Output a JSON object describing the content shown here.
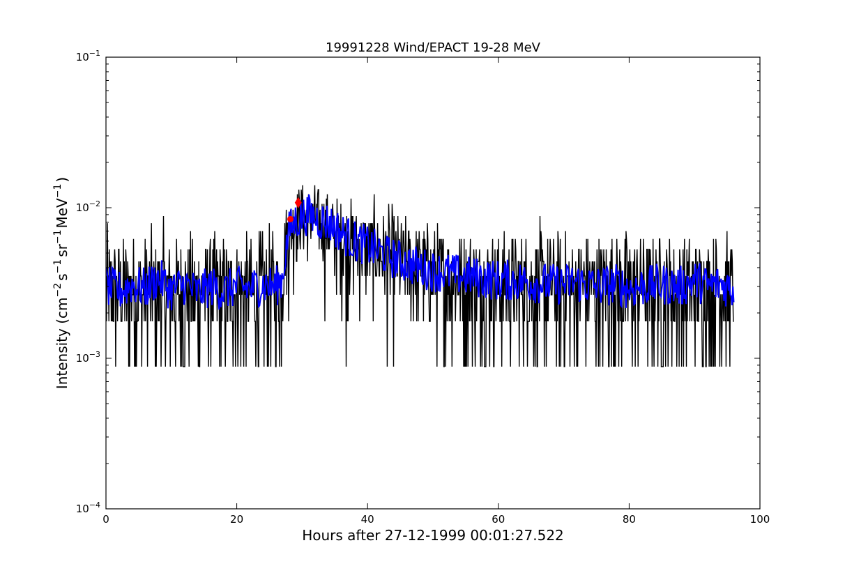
{
  "chart_data": {
    "type": "line",
    "title": "19991228 Wind/EPACT 19-28 MeV",
    "xlabel": "Hours after 27-12-1999 00:01:27.522",
    "ylabel": {
      "prefix": "Intensity (cm",
      "exp1": "−2",
      "s": "s",
      "exp2": "−1",
      "sr": "sr",
      "exp3": "−1",
      "mev": "MeV",
      "exp4": "−1",
      "suffix": ")"
    },
    "xlim": [
      0,
      100
    ],
    "ylim": [
      0.0001,
      0.1
    ],
    "yscale": "log",
    "x_ticks": [
      "0",
      "20",
      "40",
      "60",
      "80",
      "100"
    ],
    "y_ticks": [
      {
        "base": "10",
        "exp": "−4",
        "value": 0.0001
      },
      {
        "base": "10",
        "exp": "−3",
        "value": 0.001
      },
      {
        "base": "10",
        "exp": "−2",
        "value": 0.01
      },
      {
        "base": "10",
        "exp": "−1",
        "value": 0.1
      }
    ],
    "grid": false,
    "legend": "none",
    "series": [
      {
        "role": "raw",
        "color": "#000000",
        "x_range": [
          0,
          96
        ],
        "levels": [
          0.00088,
          0.00176,
          0.00264,
          0.00352,
          0.0044,
          0.0053,
          0.0062,
          0.007,
          0.0079,
          0.0088,
          0.0097,
          0.0106,
          0.0115,
          0.0123,
          0.0132,
          0.0141,
          0.015,
          0.0165
        ],
        "profile": [
          {
            "x": 0,
            "mean": 0.003
          },
          {
            "x": 26.8,
            "mean": 0.003
          },
          {
            "x": 27.5,
            "mean": 0.0065
          },
          {
            "x": 29.5,
            "mean": 0.009
          },
          {
            "x": 32,
            "mean": 0.0085
          },
          {
            "x": 36,
            "mean": 0.0065
          },
          {
            "x": 40,
            "mean": 0.0055
          },
          {
            "x": 50,
            "mean": 0.0038
          },
          {
            "x": 60,
            "mean": 0.0033
          },
          {
            "x": 96,
            "mean": 0.0031
          }
        ]
      },
      {
        "role": "smoothed",
        "color": "#0000ff",
        "x": [
          0,
          2,
          4,
          6,
          8,
          10,
          12,
          14,
          16,
          18,
          20,
          22,
          24,
          26,
          27,
          28,
          29,
          30,
          31,
          32,
          33,
          34,
          35,
          36,
          37,
          38,
          39,
          40,
          42,
          44,
          46,
          48,
          50,
          52,
          55,
          58,
          60,
          62,
          65,
          68,
          70,
          72,
          75,
          78,
          80,
          82,
          85,
          88,
          90,
          92,
          94,
          96
        ],
        "y": [
          0.003,
          0.0028,
          0.0031,
          0.0029,
          0.0034,
          0.0028,
          0.0031,
          0.0027,
          0.003,
          0.0028,
          0.003,
          0.0029,
          0.0031,
          0.003,
          0.0034,
          0.007,
          0.0082,
          0.0088,
          0.009,
          0.0086,
          0.0082,
          0.008,
          0.0074,
          0.0068,
          0.0064,
          0.006,
          0.0058,
          0.0056,
          0.005,
          0.0046,
          0.0043,
          0.004,
          0.0038,
          0.0037,
          0.0035,
          0.0034,
          0.0033,
          0.0033,
          0.0032,
          0.0031,
          0.0031,
          0.0032,
          0.003,
          0.0031,
          0.0029,
          0.003,
          0.0031,
          0.003,
          0.0033,
          0.003,
          0.0031,
          0.0029
        ]
      },
      {
        "role": "onset-markers",
        "color": "#ff0000",
        "points": [
          {
            "x": 28.2,
            "y": 0.0084,
            "shape": "circle"
          },
          {
            "x": 29.4,
            "y": 0.0108,
            "shape": "diamond"
          }
        ]
      }
    ]
  }
}
